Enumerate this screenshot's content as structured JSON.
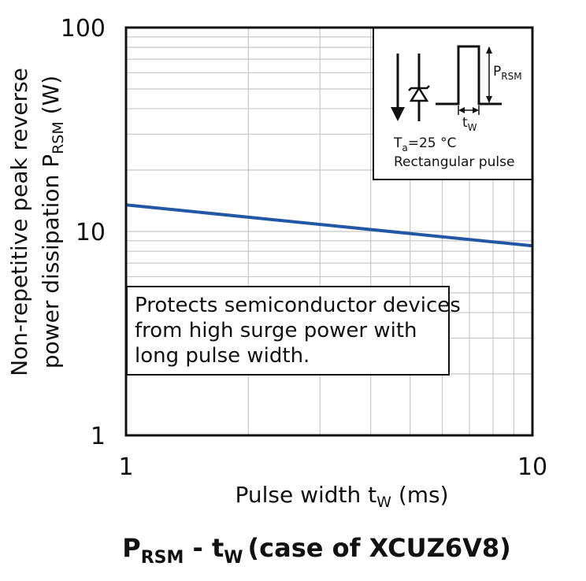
{
  "chart_data": {
    "type": "line",
    "title": {
      "main": "P",
      "main_sub": "RSM",
      "sep": " - t",
      "sep_sub": "W",
      "rest": "(case of XCUZ6V8)"
    },
    "xlabel": {
      "text": "Pulse width t",
      "sub": "W",
      "unit": " (ms)"
    },
    "ylabel": {
      "line1": "Non-repetitive peak reverse",
      "line2": "power dissipation P",
      "line2_sub": "RSM",
      "line2_unit": " (W)"
    },
    "x_scale": "log",
    "y_scale": "log",
    "xlim": [
      1,
      10
    ],
    "ylim": [
      1,
      100
    ],
    "x_ticks": [
      {
        "value": 1,
        "label": "1"
      },
      {
        "value": 10,
        "label": "10"
      }
    ],
    "y_ticks": [
      {
        "value": 1,
        "label": "1"
      },
      {
        "value": 10,
        "label": "10"
      },
      {
        "value": 100,
        "label": "100"
      }
    ],
    "grid": true,
    "series": [
      {
        "color": "#2257a6",
        "points": [
          [
            1,
            13.5
          ],
          [
            10,
            8.5
          ]
        ]
      }
    ],
    "annotation": {
      "lines": [
        "Protects semiconductor devices",
        "from high surge power with",
        "long pulse width."
      ]
    },
    "inset": {
      "p_label": "P",
      "p_sub": "RSM",
      "t_label": "t",
      "t_sub": "W",
      "cond_ta": "T",
      "cond_ta_sub": "a",
      "cond_ta_value": "=25 °C",
      "cond_pulse": "Rectangular pulse"
    }
  },
  "colors": {
    "line": "#2257a6",
    "grid": "#c8c8c8",
    "frame": "#111111"
  }
}
